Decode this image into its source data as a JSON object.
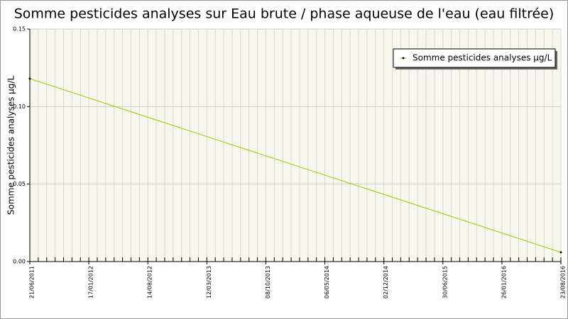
{
  "chart_data": {
    "type": "line",
    "title": "Somme pesticides analyses sur Eau brute / phase aqueuse de l'eau (eau filtrée)",
    "y_label": "Somme pesticides analyses µg/L",
    "x": [
      "21/06/2011",
      "23/08/2016"
    ],
    "series": [
      {
        "name": "Somme pesticides analyses µg/L",
        "color": "#99cc00",
        "values": [
          0.118,
          0.006
        ]
      }
    ],
    "xlim": [
      "21/06/2011",
      "23/08/2016"
    ],
    "xticks": [
      "21/06/2011",
      "17/01/2012",
      "14/08/2012",
      "12/03/2013",
      "08/10/2013",
      "06/05/2014",
      "02/12/2014",
      "30/06/2015",
      "26/01/2016",
      "23/08/2016"
    ],
    "ylim": [
      0,
      0.15
    ],
    "yticks": [
      {
        "value": 0,
        "label": "0.00"
      },
      0.05,
      {
        "value": 0.1,
        "label": "0.10"
      },
      0.15
    ],
    "grid": true,
    "legend": "upper right"
  }
}
